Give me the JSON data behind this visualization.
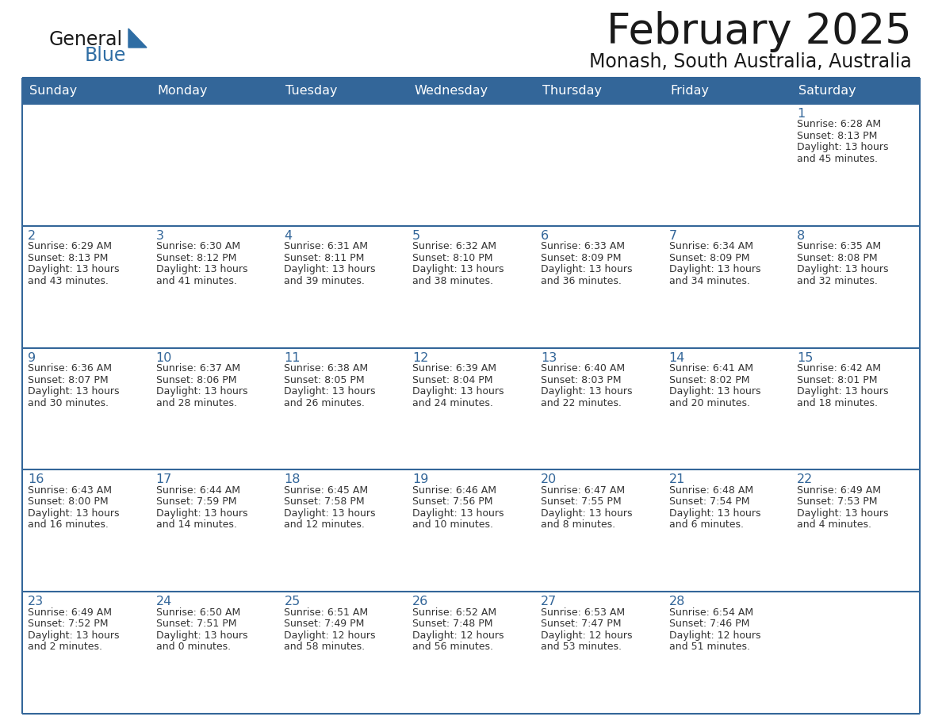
{
  "title": "February 2025",
  "subtitle": "Monash, South Australia, Australia",
  "header_bg": "#336699",
  "header_text_color": "#FFFFFF",
  "cell_bg": "#FFFFFF",
  "day_number_color": "#336699",
  "text_color": "#333333",
  "border_color": "#336699",
  "row_divider_color": "#336699",
  "days_of_week": [
    "Sunday",
    "Monday",
    "Tuesday",
    "Wednesday",
    "Thursday",
    "Friday",
    "Saturday"
  ],
  "logo_general_color": "#1a1a1a",
  "logo_blue_color": "#2E6DA4",
  "logo_triangle_color": "#2E6DA4",
  "calendar_data": [
    [
      null,
      null,
      null,
      null,
      null,
      null,
      {
        "day": 1,
        "sunrise": "6:28 AM",
        "sunset": "8:13 PM",
        "daylight_h": "13 hours",
        "daylight_m": "and 45 minutes."
      }
    ],
    [
      {
        "day": 2,
        "sunrise": "6:29 AM",
        "sunset": "8:13 PM",
        "daylight_h": "13 hours",
        "daylight_m": "and 43 minutes."
      },
      {
        "day": 3,
        "sunrise": "6:30 AM",
        "sunset": "8:12 PM",
        "daylight_h": "13 hours",
        "daylight_m": "and 41 minutes."
      },
      {
        "day": 4,
        "sunrise": "6:31 AM",
        "sunset": "8:11 PM",
        "daylight_h": "13 hours",
        "daylight_m": "and 39 minutes."
      },
      {
        "day": 5,
        "sunrise": "6:32 AM",
        "sunset": "8:10 PM",
        "daylight_h": "13 hours",
        "daylight_m": "and 38 minutes."
      },
      {
        "day": 6,
        "sunrise": "6:33 AM",
        "sunset": "8:09 PM",
        "daylight_h": "13 hours",
        "daylight_m": "and 36 minutes."
      },
      {
        "day": 7,
        "sunrise": "6:34 AM",
        "sunset": "8:09 PM",
        "daylight_h": "13 hours",
        "daylight_m": "and 34 minutes."
      },
      {
        "day": 8,
        "sunrise": "6:35 AM",
        "sunset": "8:08 PM",
        "daylight_h": "13 hours",
        "daylight_m": "and 32 minutes."
      }
    ],
    [
      {
        "day": 9,
        "sunrise": "6:36 AM",
        "sunset": "8:07 PM",
        "daylight_h": "13 hours",
        "daylight_m": "and 30 minutes."
      },
      {
        "day": 10,
        "sunrise": "6:37 AM",
        "sunset": "8:06 PM",
        "daylight_h": "13 hours",
        "daylight_m": "and 28 minutes."
      },
      {
        "day": 11,
        "sunrise": "6:38 AM",
        "sunset": "8:05 PM",
        "daylight_h": "13 hours",
        "daylight_m": "and 26 minutes."
      },
      {
        "day": 12,
        "sunrise": "6:39 AM",
        "sunset": "8:04 PM",
        "daylight_h": "13 hours",
        "daylight_m": "and 24 minutes."
      },
      {
        "day": 13,
        "sunrise": "6:40 AM",
        "sunset": "8:03 PM",
        "daylight_h": "13 hours",
        "daylight_m": "and 22 minutes."
      },
      {
        "day": 14,
        "sunrise": "6:41 AM",
        "sunset": "8:02 PM",
        "daylight_h": "13 hours",
        "daylight_m": "and 20 minutes."
      },
      {
        "day": 15,
        "sunrise": "6:42 AM",
        "sunset": "8:01 PM",
        "daylight_h": "13 hours",
        "daylight_m": "and 18 minutes."
      }
    ],
    [
      {
        "day": 16,
        "sunrise": "6:43 AM",
        "sunset": "8:00 PM",
        "daylight_h": "13 hours",
        "daylight_m": "and 16 minutes."
      },
      {
        "day": 17,
        "sunrise": "6:44 AM",
        "sunset": "7:59 PM",
        "daylight_h": "13 hours",
        "daylight_m": "and 14 minutes."
      },
      {
        "day": 18,
        "sunrise": "6:45 AM",
        "sunset": "7:58 PM",
        "daylight_h": "13 hours",
        "daylight_m": "and 12 minutes."
      },
      {
        "day": 19,
        "sunrise": "6:46 AM",
        "sunset": "7:56 PM",
        "daylight_h": "13 hours",
        "daylight_m": "and 10 minutes."
      },
      {
        "day": 20,
        "sunrise": "6:47 AM",
        "sunset": "7:55 PM",
        "daylight_h": "13 hours",
        "daylight_m": "and 8 minutes."
      },
      {
        "day": 21,
        "sunrise": "6:48 AM",
        "sunset": "7:54 PM",
        "daylight_h": "13 hours",
        "daylight_m": "and 6 minutes."
      },
      {
        "day": 22,
        "sunrise": "6:49 AM",
        "sunset": "7:53 PM",
        "daylight_h": "13 hours",
        "daylight_m": "and 4 minutes."
      }
    ],
    [
      {
        "day": 23,
        "sunrise": "6:49 AM",
        "sunset": "7:52 PM",
        "daylight_h": "13 hours",
        "daylight_m": "and 2 minutes."
      },
      {
        "day": 24,
        "sunrise": "6:50 AM",
        "sunset": "7:51 PM",
        "daylight_h": "13 hours",
        "daylight_m": "and 0 minutes."
      },
      {
        "day": 25,
        "sunrise": "6:51 AM",
        "sunset": "7:49 PM",
        "daylight_h": "12 hours",
        "daylight_m": "and 58 minutes."
      },
      {
        "day": 26,
        "sunrise": "6:52 AM",
        "sunset": "7:48 PM",
        "daylight_h": "12 hours",
        "daylight_m": "and 56 minutes."
      },
      {
        "day": 27,
        "sunrise": "6:53 AM",
        "sunset": "7:47 PM",
        "daylight_h": "12 hours",
        "daylight_m": "and 53 minutes."
      },
      {
        "day": 28,
        "sunrise": "6:54 AM",
        "sunset": "7:46 PM",
        "daylight_h": "12 hours",
        "daylight_m": "and 51 minutes."
      },
      null
    ]
  ]
}
